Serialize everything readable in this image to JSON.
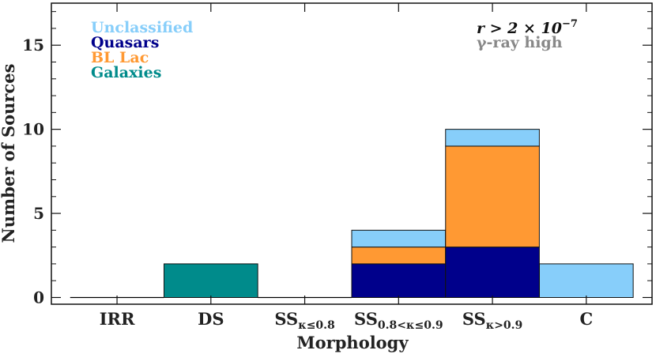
{
  "chart_data": {
    "type": "bar",
    "stacked": true,
    "categories": [
      "IRR",
      "DS",
      "SS_κ≤0.8",
      "SS_0.8<κ≤0.9",
      "SS_κ>0.9",
      "C"
    ],
    "category_labels": [
      {
        "main": "IRR",
        "sub": ""
      },
      {
        "main": "DS",
        "sub": ""
      },
      {
        "main": "SS",
        "sub": "κ≤0.8"
      },
      {
        "main": "SS",
        "sub": "0.8<κ≤0.9"
      },
      {
        "main": "SS",
        "sub": "κ>0.9"
      },
      {
        "main": "C",
        "sub": ""
      }
    ],
    "series": [
      {
        "name": "Galaxies",
        "color": "#008b8b",
        "values": [
          0,
          2,
          0,
          0,
          0,
          0
        ]
      },
      {
        "name": "Quasars",
        "color": "#00008b",
        "values": [
          0,
          0,
          0,
          2,
          3,
          0
        ]
      },
      {
        "name": "BL Lac",
        "color": "#ff9933",
        "values": [
          0,
          0,
          0,
          1,
          6,
          0
        ]
      },
      {
        "name": "Unclassified",
        "color": "#87cefa",
        "values": [
          0,
          0,
          0,
          1,
          1,
          2
        ]
      }
    ],
    "legend_order": [
      "Unclassified",
      "Quasars",
      "BL Lac",
      "Galaxies"
    ],
    "legend_position": "top-left",
    "xlabel": "Morphology",
    "ylabel": "Number of Sources",
    "ylim": [
      -0.4,
      17.5
    ],
    "yticks": [
      0,
      5,
      10,
      15
    ],
    "annotation": {
      "line1_main": "r > 2 × 10",
      "line1_exp": "−7",
      "line2": "γ-ray high"
    },
    "annotation_colors": {
      "line1": "#111111",
      "line2": "#888888"
    },
    "empty_bar_color": "#000000"
  }
}
